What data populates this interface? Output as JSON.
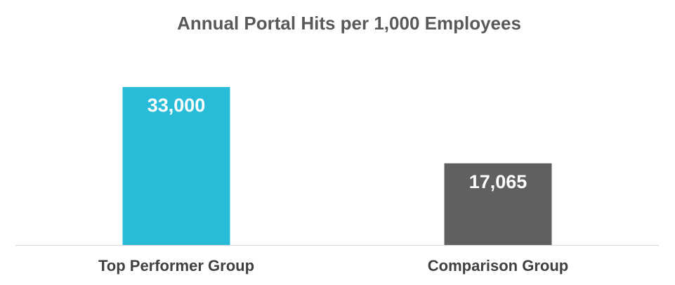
{
  "chart_data": {
    "type": "bar",
    "title": "Annual Portal Hits per 1,000 Employees",
    "categories": [
      "Top Performer Group",
      "Comparison Group"
    ],
    "values": [
      33000,
      17065
    ],
    "value_labels": [
      "33,000",
      "17,065"
    ],
    "colors": [
      "#29bcd8",
      "#5f6062"
    ]
  }
}
